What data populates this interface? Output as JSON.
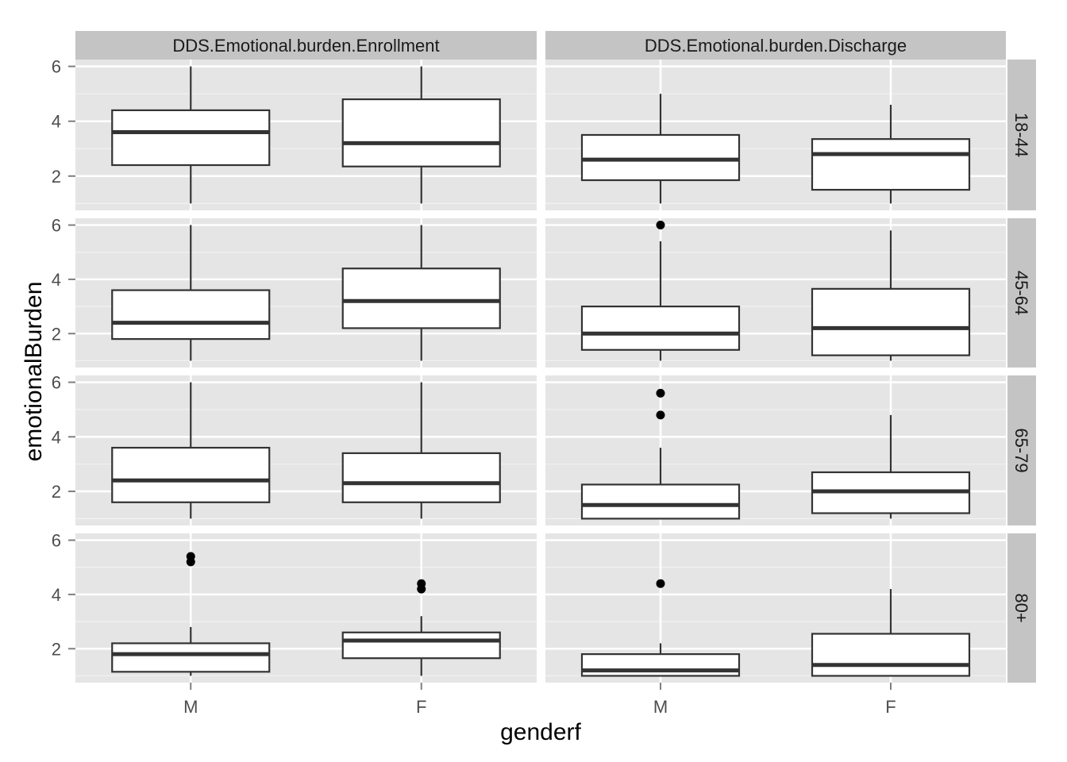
{
  "chart_data": {
    "type": "boxplot",
    "xlabel": "genderf",
    "ylabel": "emotionalBurden",
    "categories": [
      "M",
      "F"
    ],
    "y_ticks": [
      2,
      4,
      6
    ],
    "ylim": [
      0.75,
      6.25
    ],
    "columns": [
      "DDS.Emotional.burden.Enrollment",
      "DDS.Emotional.burden.Discharge"
    ],
    "rows": [
      "18-44",
      "45-64",
      "65-79",
      "80+"
    ],
    "grid": true,
    "panel_background": "#e5e5e5",
    "strip_background": "#c4c4c4",
    "panels": [
      {
        "column": "DDS.Emotional.burden.Enrollment",
        "row": "18-44",
        "boxes": [
          {
            "category": "M",
            "lower_whisker": 1.0,
            "q1": 2.4,
            "median": 3.6,
            "q3": 4.4,
            "upper_whisker": 6.0,
            "outliers": []
          },
          {
            "category": "F",
            "lower_whisker": 1.0,
            "q1": 2.35,
            "median": 3.2,
            "q3": 4.8,
            "upper_whisker": 6.0,
            "outliers": []
          }
        ]
      },
      {
        "column": "DDS.Emotional.burden.Discharge",
        "row": "18-44",
        "boxes": [
          {
            "category": "M",
            "lower_whisker": 1.0,
            "q1": 1.85,
            "median": 2.6,
            "q3": 3.5,
            "upper_whisker": 5.0,
            "outliers": []
          },
          {
            "category": "F",
            "lower_whisker": 1.0,
            "q1": 1.5,
            "median": 2.8,
            "q3": 3.35,
            "upper_whisker": 4.6,
            "outliers": []
          }
        ]
      },
      {
        "column": "DDS.Emotional.burden.Enrollment",
        "row": "45-64",
        "boxes": [
          {
            "category": "M",
            "lower_whisker": 1.0,
            "q1": 1.8,
            "median": 2.4,
            "q3": 3.6,
            "upper_whisker": 6.0,
            "outliers": []
          },
          {
            "category": "F",
            "lower_whisker": 1.0,
            "q1": 2.2,
            "median": 3.2,
            "q3": 4.4,
            "upper_whisker": 6.0,
            "outliers": []
          }
        ]
      },
      {
        "column": "DDS.Emotional.burden.Discharge",
        "row": "45-64",
        "boxes": [
          {
            "category": "M",
            "lower_whisker": 1.0,
            "q1": 1.4,
            "median": 2.0,
            "q3": 3.0,
            "upper_whisker": 5.4,
            "outliers": [
              6.0
            ]
          },
          {
            "category": "F",
            "lower_whisker": 1.0,
            "q1": 1.2,
            "median": 2.2,
            "q3": 3.65,
            "upper_whisker": 5.8,
            "outliers": []
          }
        ]
      },
      {
        "column": "DDS.Emotional.burden.Enrollment",
        "row": "65-79",
        "boxes": [
          {
            "category": "M",
            "lower_whisker": 1.0,
            "q1": 1.6,
            "median": 2.4,
            "q3": 3.6,
            "upper_whisker": 6.0,
            "outliers": []
          },
          {
            "category": "F",
            "lower_whisker": 1.0,
            "q1": 1.6,
            "median": 2.3,
            "q3": 3.4,
            "upper_whisker": 6.0,
            "outliers": []
          }
        ]
      },
      {
        "column": "DDS.Emotional.burden.Discharge",
        "row": "65-79",
        "boxes": [
          {
            "category": "M",
            "lower_whisker": 1.0,
            "q1": 1.0,
            "median": 1.5,
            "q3": 2.25,
            "upper_whisker": 3.6,
            "outliers": [
              4.8,
              5.6
            ]
          },
          {
            "category": "F",
            "lower_whisker": 1.0,
            "q1": 1.2,
            "median": 2.0,
            "q3": 2.7,
            "upper_whisker": 4.8,
            "outliers": []
          }
        ]
      },
      {
        "column": "DDS.Emotional.burden.Enrollment",
        "row": "80+",
        "boxes": [
          {
            "category": "M",
            "lower_whisker": 1.0,
            "q1": 1.15,
            "median": 1.8,
            "q3": 2.2,
            "upper_whisker": 2.8,
            "outliers": [
              5.2,
              5.4
            ]
          },
          {
            "category": "F",
            "lower_whisker": 1.0,
            "q1": 1.65,
            "median": 2.3,
            "q3": 2.6,
            "upper_whisker": 3.2,
            "outliers": [
              4.2,
              4.4
            ]
          }
        ]
      },
      {
        "column": "DDS.Emotional.burden.Discharge",
        "row": "80+",
        "boxes": [
          {
            "category": "M",
            "lower_whisker": 1.0,
            "q1": 1.0,
            "median": 1.2,
            "q3": 1.8,
            "upper_whisker": 2.2,
            "outliers": [
              4.4
            ]
          },
          {
            "category": "F",
            "lower_whisker": 1.0,
            "q1": 1.0,
            "median": 1.4,
            "q3": 2.55,
            "upper_whisker": 4.2,
            "outliers": []
          }
        ]
      }
    ]
  }
}
